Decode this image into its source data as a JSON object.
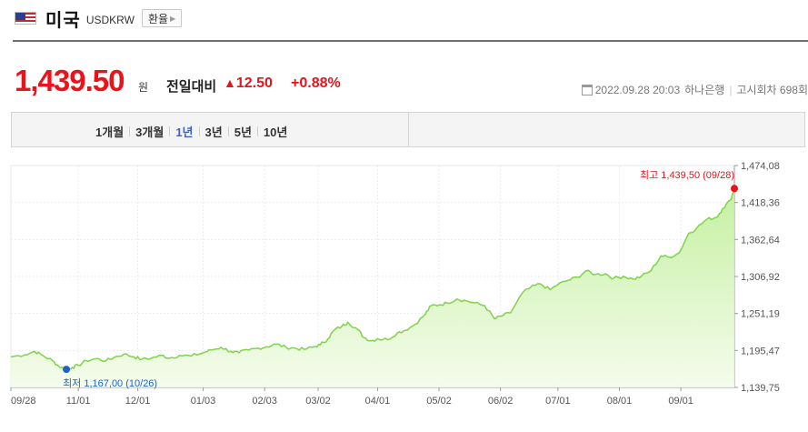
{
  "header": {
    "country": "미국",
    "code": "USDKRW",
    "rate_button": "환율"
  },
  "price": {
    "value": "1,439.50",
    "unit": "원",
    "diff_label": "전일대비",
    "diff_symbol": "▲",
    "diff_value": "12.50",
    "diff_percent": "+0.88%",
    "date": "2022.09.28 20:03",
    "bank": "하나은행",
    "notice": "고시회차 698회"
  },
  "periods": [
    {
      "label": "1개월",
      "active": false
    },
    {
      "label": "3개월",
      "active": false
    },
    {
      "label": "1년",
      "active": true
    },
    {
      "label": "3년",
      "active": false
    },
    {
      "label": "5년",
      "active": false
    },
    {
      "label": "10년",
      "active": false
    }
  ],
  "colors": {
    "up": "#e8131b",
    "line": "#7fd34a",
    "high_dot": "#e8131b",
    "low_dot": "#1e63c8",
    "active_tab": "#3a62c9"
  },
  "chart_data": {
    "type": "area",
    "x_ticks": [
      "09/28",
      "11/01",
      "12/01",
      "01/03",
      "02/03",
      "03/02",
      "04/01",
      "05/02",
      "06/02",
      "07/01",
      "08/01",
      "09/01"
    ],
    "y_ticks": [
      "1,474,08",
      "1,418,36",
      "1,362,64",
      "1,306,92",
      "1,251,19",
      "1,195,47",
      "1,139,75"
    ],
    "ylim": [
      1139.75,
      1474.08
    ],
    "grid": true,
    "highest": {
      "label": "최고 1,439,50 (09/28)",
      "value": 1439.5,
      "x": "2022-09-28"
    },
    "lowest": {
      "label": "최저 1,167,00 (10/26)",
      "value": 1167.0,
      "x": "2021-10-26"
    },
    "series": [
      {
        "points": [
          [
            "2021-09-28",
            1186
          ],
          [
            "2021-10-05",
            1189
          ],
          [
            "2021-10-10",
            1194
          ],
          [
            "2021-10-14",
            1188
          ],
          [
            "2021-10-19",
            1180
          ],
          [
            "2021-10-22",
            1172
          ],
          [
            "2021-10-26",
            1167
          ],
          [
            "2021-10-29",
            1170
          ],
          [
            "2021-11-01",
            1173
          ],
          [
            "2021-11-05",
            1180
          ],
          [
            "2021-11-10",
            1183
          ],
          [
            "2021-11-15",
            1180
          ],
          [
            "2021-11-19",
            1185
          ],
          [
            "2021-11-24",
            1190
          ],
          [
            "2021-11-29",
            1186
          ],
          [
            "2021-12-03",
            1182
          ],
          [
            "2021-12-08",
            1184
          ],
          [
            "2021-12-13",
            1188
          ],
          [
            "2021-12-17",
            1184
          ],
          [
            "2021-12-22",
            1188
          ],
          [
            "2021-12-28",
            1187
          ],
          [
            "2022-01-03",
            1192
          ],
          [
            "2022-01-07",
            1196
          ],
          [
            "2022-01-12",
            1200
          ],
          [
            "2022-01-17",
            1194
          ],
          [
            "2022-01-21",
            1192
          ],
          [
            "2022-01-26",
            1196
          ],
          [
            "2022-01-31",
            1199
          ],
          [
            "2022-02-04",
            1201
          ],
          [
            "2022-02-09",
            1205
          ],
          [
            "2022-02-14",
            1200
          ],
          [
            "2022-02-18",
            1199
          ],
          [
            "2022-02-23",
            1197
          ],
          [
            "2022-02-28",
            1201
          ],
          [
            "2022-03-03",
            1204
          ],
          [
            "2022-03-07",
            1213
          ],
          [
            "2022-03-10",
            1226
          ],
          [
            "2022-03-14",
            1232
          ],
          [
            "2022-03-17",
            1238
          ],
          [
            "2022-03-22",
            1227
          ],
          [
            "2022-03-25",
            1215
          ],
          [
            "2022-03-29",
            1210
          ],
          [
            "2022-04-01",
            1213
          ],
          [
            "2022-04-06",
            1212
          ],
          [
            "2022-04-11",
            1222
          ],
          [
            "2022-04-15",
            1226
          ],
          [
            "2022-04-20",
            1235
          ],
          [
            "2022-04-25",
            1250
          ],
          [
            "2022-04-28",
            1263
          ],
          [
            "2022-05-02",
            1264
          ],
          [
            "2022-05-06",
            1267
          ],
          [
            "2022-05-11",
            1273
          ],
          [
            "2022-05-16",
            1270
          ],
          [
            "2022-05-20",
            1267
          ],
          [
            "2022-05-25",
            1263
          ],
          [
            "2022-05-30",
            1243
          ],
          [
            "2022-06-02",
            1247
          ],
          [
            "2022-06-07",
            1252
          ],
          [
            "2022-06-13",
            1282
          ],
          [
            "2022-06-17",
            1290
          ],
          [
            "2022-06-22",
            1296
          ],
          [
            "2022-06-27",
            1287
          ],
          [
            "2022-07-01",
            1295
          ],
          [
            "2022-07-06",
            1301
          ],
          [
            "2022-07-11",
            1306
          ],
          [
            "2022-07-15",
            1315
          ],
          [
            "2022-07-20",
            1310
          ],
          [
            "2022-07-25",
            1311
          ],
          [
            "2022-07-29",
            1304
          ],
          [
            "2022-08-03",
            1307
          ],
          [
            "2022-08-08",
            1303
          ],
          [
            "2022-08-12",
            1307
          ],
          [
            "2022-08-17",
            1316
          ],
          [
            "2022-08-22",
            1338
          ],
          [
            "2022-08-26",
            1336
          ],
          [
            "2022-08-31",
            1342
          ],
          [
            "2022-09-05",
            1372
          ],
          [
            "2022-09-09",
            1380
          ],
          [
            "2022-09-14",
            1393
          ],
          [
            "2022-09-19",
            1396
          ],
          [
            "2022-09-22",
            1409
          ],
          [
            "2022-09-26",
            1422
          ],
          [
            "2022-09-28",
            1439.5
          ]
        ]
      }
    ]
  }
}
